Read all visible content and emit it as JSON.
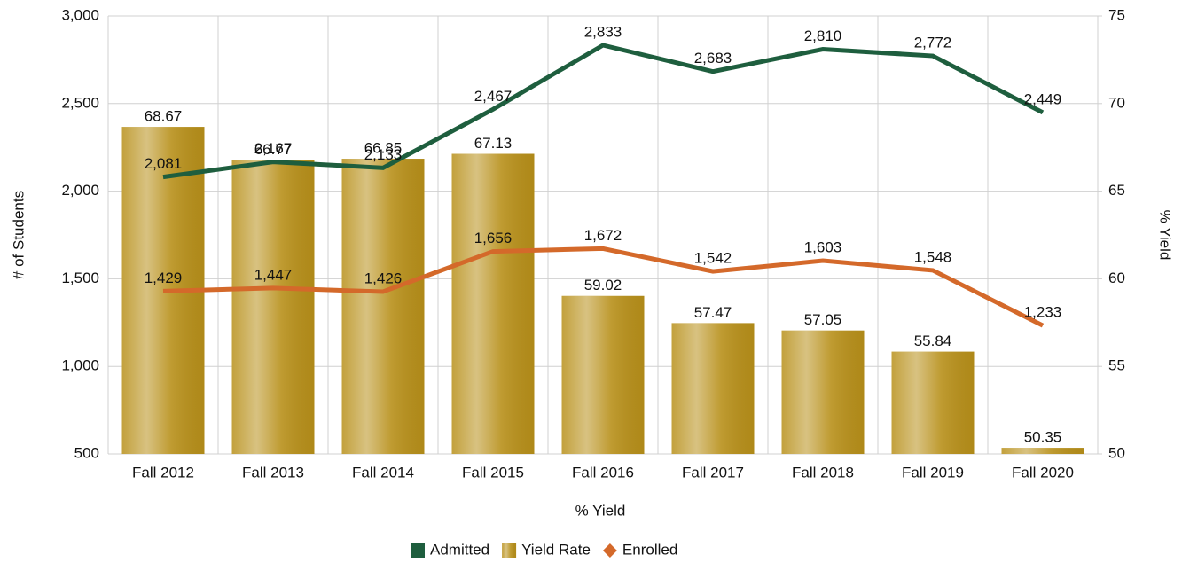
{
  "chart_data": {
    "type": "combo",
    "categories": [
      "Fall 2012",
      "Fall 2013",
      "Fall 2014",
      "Fall 2015",
      "Fall 2016",
      "Fall 2017",
      "Fall 2018",
      "Fall 2019",
      "Fall 2020"
    ],
    "series": [
      {
        "name": "Admitted",
        "type": "line",
        "axis": "y",
        "color": "#1e5e3e",
        "values": [
          2081,
          2167,
          2133,
          2467,
          2833,
          2683,
          2810,
          2772,
          2449
        ],
        "value_labels": [
          "2,081",
          "2,167",
          "2,133",
          "2,467",
          "2,833",
          "2,683",
          "2,810",
          "2,772",
          "2,449"
        ]
      },
      {
        "name": "Yield Rate",
        "type": "bar",
        "axis": "y2",
        "color": "#b8901a",
        "values": [
          68.67,
          66.77,
          66.85,
          67.13,
          59.02,
          57.47,
          57.05,
          55.84,
          50.35
        ]
      },
      {
        "name": "Enrolled",
        "type": "line",
        "axis": "y",
        "color": "#d4692a",
        "values": [
          1429,
          1447,
          1426,
          1656,
          1672,
          1542,
          1603,
          1548,
          1233
        ],
        "value_labels": [
          "1,429",
          "1,447",
          "1,426",
          "1,656",
          "1,672",
          "1,542",
          "1,603",
          "1,548",
          "1,233"
        ]
      }
    ],
    "x_label": "% Yield",
    "y_label": "# of Students",
    "y2_label": "% Yield",
    "ylim": [
      500,
      3000
    ],
    "yticks": [
      {
        "value": 500,
        "label": "500"
      },
      {
        "value": 1000,
        "label": "1,000"
      },
      {
        "value": 1500,
        "label": "1,500"
      },
      {
        "value": 2000,
        "label": "2,000"
      },
      {
        "value": 2500,
        "label": "2,500"
      },
      {
        "value": 3000,
        "label": "3,000"
      }
    ],
    "y2lim": [
      50,
      75
    ],
    "y2ticks": [
      50,
      55,
      60,
      65,
      70,
      75
    ],
    "grid": true,
    "legend": "bottom"
  }
}
